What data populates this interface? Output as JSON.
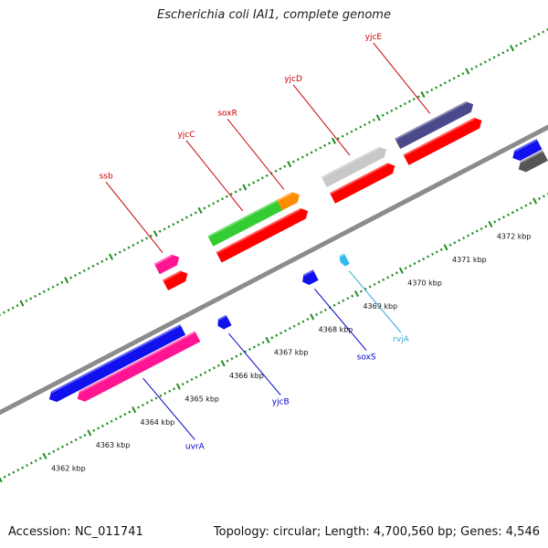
{
  "title": "Escherichia coli IAI1, complete genome",
  "footer": {
    "accession": "Accession: NC_011741",
    "info": "Topology: circular; Length: 4,700,560 bp; Genes: 4,546"
  },
  "colors": {
    "backbone": "#8c8c8c",
    "ticks": "#1e8c1e",
    "cds": "#ff0000"
  },
  "map": {
    "kbp_start": 4362,
    "kbp_end": 4372,
    "tick_labels": [
      "4362 kbp",
      "4363 kbp",
      "4364 kbp",
      "4365 kbp",
      "4366 kbp",
      "4367 kbp",
      "4368 kbp",
      "4369 kbp",
      "4370 kbp",
      "4371 kbp",
      "4372 kbp"
    ],
    "genes": [
      {
        "name": "uvrA",
        "track": "rev",
        "start": 4363.1,
        "end": 4365.8,
        "color": "#ff1493",
        "label_color": "#0000cc"
      },
      {
        "name": "",
        "track": "rev-outer",
        "start": 4362.6,
        "end": 4365.6,
        "color": "#1111ee",
        "label_color": "#0000cc"
      },
      {
        "name": "ssb",
        "track": "fwd",
        "start": 4365.7,
        "end": 4366.2,
        "color": "#ff1493",
        "label_color": "#cc0000"
      },
      {
        "name": "",
        "track": "fwd-cds",
        "start": 4365.7,
        "end": 4366.2,
        "color": "#ff0000",
        "label_color": "#cc0000"
      },
      {
        "name": "yjcB",
        "track": "rev",
        "start": 4366.25,
        "end": 4366.5,
        "color": "#1111ee",
        "label_color": "#0000cc"
      },
      {
        "name": "yjcC",
        "track": "fwd",
        "start": 4366.9,
        "end": 4368.6,
        "color": "#33cc33",
        "label_color": "#cc0000"
      },
      {
        "name": "",
        "track": "fwd-cds",
        "start": 4366.9,
        "end": 4368.6,
        "color": "#ff0000",
        "label_color": "#cc0000"
      },
      {
        "name": "soxS",
        "track": "rev",
        "start": 4368.15,
        "end": 4368.45,
        "color": "#1111ee",
        "label_color": "#0000cc"
      },
      {
        "name": "soxR",
        "track": "fwd",
        "start": 4368.45,
        "end": 4368.9,
        "color": "#ff8c00",
        "label_color": "#cc0000"
      },
      {
        "name": "",
        "track": "fwd-cds",
        "start": 4368.45,
        "end": 4368.9,
        "color": "#ff0000",
        "label_color": "#cc0000"
      },
      {
        "name": "rvjA",
        "track": "rev",
        "start": 4369.0,
        "end": 4369.15,
        "color": "#33bbee",
        "label_color": "#33aadd"
      },
      {
        "name": "yjcD",
        "track": "fwd",
        "start": 4369.45,
        "end": 4370.85,
        "color": "#c8c8c8",
        "label_color": "#cc0000"
      },
      {
        "name": "",
        "track": "fwd-cds",
        "start": 4369.45,
        "end": 4370.85,
        "color": "#ff0000",
        "label_color": "#cc0000"
      },
      {
        "name": "yjcE",
        "track": "fwd",
        "start": 4371.1,
        "end": 4372.8,
        "color": "#4a4a8a",
        "label_color": "#cc0000"
      },
      {
        "name": "",
        "track": "fwd-cds",
        "start": 4371.1,
        "end": 4372.8,
        "color": "#ff0000",
        "label_color": "#cc0000"
      },
      {
        "name": "",
        "track": "rev-outer",
        "start": 4373.0,
        "end": 4373.6,
        "color": "#1111ee",
        "label_color": "#0000cc"
      },
      {
        "name": "",
        "track": "rev",
        "start": 4373.0,
        "end": 4373.6,
        "color": "#555555",
        "label_color": "#0000cc"
      }
    ]
  }
}
